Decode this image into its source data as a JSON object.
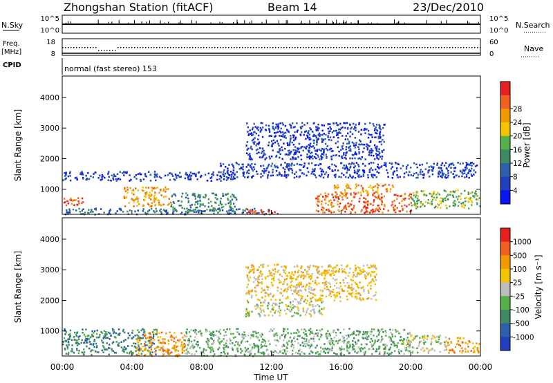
{
  "header": {
    "station": "Zhongshan Station (fitACF)",
    "beam": "Beam 14",
    "date": "23/Dec/2010"
  },
  "mini_panels": {
    "nsky_label": "N.Sky",
    "nsky_ticks": [
      "10^5",
      "10^0"
    ],
    "nsearch_label": "N.Search",
    "nsearch_ticks": [
      "10^5",
      "10^0"
    ],
    "freq_label_1": "Freq.",
    "freq_label_2": "[MHz]",
    "freq_ticks": [
      "18",
      "8"
    ],
    "nave_label": "Nave",
    "nave_ticks": [
      "60",
      "0"
    ],
    "cpid_label": "CPID",
    "cpid_text": "normal (fast stereo) 153"
  },
  "colors": {
    "power_scale": [
      "#0a14f0",
      "#1f3fbf",
      "#2f5fa8",
      "#3d8a63",
      "#56b04a",
      "#f5c400",
      "#f29a00",
      "#f06020",
      "#e62020"
    ],
    "velocity_scale": [
      "#1f3fbf",
      "#2f5fa8",
      "#3d8a63",
      "#56b04a",
      "#bdbdbd",
      "#f5c400",
      "#f29a00",
      "#f06020",
      "#e62020"
    ]
  },
  "chart_data": [
    {
      "type": "heatmap",
      "name": "power",
      "ylabel": "Slant Range [km]",
      "xlabel": "Time UT",
      "x_ticks": [
        "00:00",
        "04:00",
        "08:00",
        "12:00",
        "16:00",
        "20:00",
        "00:00"
      ],
      "y_ticks": [
        "1000",
        "2000",
        "3000",
        "4000"
      ],
      "xlim_hours": [
        0,
        24
      ],
      "ylim_km": [
        180,
        4700
      ],
      "colorbar": {
        "label": "Power [dB]",
        "ticks": [
          "4",
          "8",
          "12",
          "16",
          "20",
          "24",
          "28"
        ]
      },
      "regions": [
        {
          "t0": 0.0,
          "t1": 12.0,
          "r0": 200,
          "r1": 400,
          "level": 2
        },
        {
          "t0": 0.0,
          "t1": 1.2,
          "r0": 500,
          "r1": 800,
          "level": 7
        },
        {
          "t0": 3.5,
          "t1": 6.2,
          "r0": 450,
          "r1": 1100,
          "level": 6
        },
        {
          "t0": 6.2,
          "t1": 10.0,
          "r0": 300,
          "r1": 900,
          "level": 3
        },
        {
          "t0": 0.0,
          "t1": 10.0,
          "r0": 1300,
          "r1": 1600,
          "level": 1
        },
        {
          "t0": 9.0,
          "t1": 23.8,
          "r0": 1400,
          "r1": 1900,
          "level": 1
        },
        {
          "t0": 10.5,
          "t1": 12.5,
          "r0": 220,
          "r1": 380,
          "level": 8
        },
        {
          "t0": 14.5,
          "t1": 20.0,
          "r0": 250,
          "r1": 900,
          "level": 7
        },
        {
          "t0": 15.5,
          "t1": 19.0,
          "r0": 900,
          "r1": 1200,
          "level": 6
        },
        {
          "t0": 20.0,
          "t1": 24.0,
          "r0": 400,
          "r1": 1000,
          "level": 4
        },
        {
          "t0": 10.5,
          "t1": 18.5,
          "r0": 2000,
          "r1": 3200,
          "level": 1
        }
      ]
    },
    {
      "type": "heatmap",
      "name": "velocity",
      "ylabel": "Slant Range [km]",
      "xlabel": "Time UT",
      "x_ticks": [
        "00:00",
        "04:00",
        "08:00",
        "12:00",
        "16:00",
        "20:00",
        "00:00"
      ],
      "y_ticks": [
        "1000",
        "2000",
        "3000",
        "4000"
      ],
      "xlim_hours": [
        0,
        24
      ],
      "ylim_km": [
        180,
        4700
      ],
      "colorbar": {
        "label": "Velocity [m s⁻¹]",
        "ticks": [
          "1000",
          "500",
          "100",
          "25",
          "-25",
          "-100",
          "-500",
          "-1000"
        ]
      },
      "regions": [
        {
          "t0": 0.0,
          "t1": 5.5,
          "r0": 250,
          "r1": 1100,
          "level": 2
        },
        {
          "t0": 4.2,
          "t1": 7.0,
          "r0": 200,
          "r1": 1000,
          "level": 6
        },
        {
          "t0": 7.0,
          "t1": 11.0,
          "r0": 200,
          "r1": 1100,
          "level": 3
        },
        {
          "t0": 11.0,
          "t1": 20.0,
          "r0": 250,
          "r1": 1100,
          "level": 3
        },
        {
          "t0": 19.5,
          "t1": 22.0,
          "r0": 300,
          "r1": 900,
          "level": 4
        },
        {
          "t0": 22.0,
          "t1": 24.0,
          "r0": 300,
          "r1": 800,
          "level": 6
        },
        {
          "t0": 10.5,
          "t1": 15.0,
          "r0": 1500,
          "r1": 2000,
          "level": 4
        },
        {
          "t0": 10.5,
          "t1": 18.0,
          "r0": 2000,
          "r1": 3200,
          "level": 5
        }
      ]
    }
  ]
}
